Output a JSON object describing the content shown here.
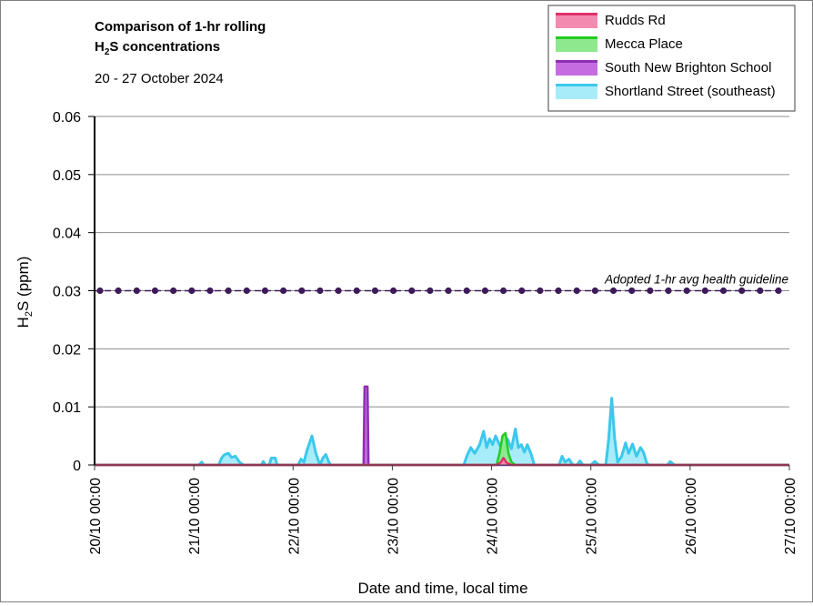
{
  "chart_data": {
    "type": "area",
    "title_line1": "Comparison of 1-hr rolling",
    "title_line2_prefix": "H",
    "title_line2_sub": "2",
    "title_line2_suffix": "S concentrations",
    "subtitle": "20 - 27 October 2024",
    "xlabel": "Date and time, local time",
    "ylabel_prefix": "H",
    "ylabel_sub": "2",
    "ylabel_suffix": "S (ppm)",
    "ylim": [
      0,
      0.06
    ],
    "y_ticks": [
      "0",
      "0.01",
      "0.02",
      "0.03",
      "0.04",
      "0.05",
      "0.06"
    ],
    "x_tick_labels": [
      "20/10 00:00",
      "21/10 00:00",
      "22/10 00:00",
      "23/10 00:00",
      "24/10 00:00",
      "25/10 00:00",
      "26/10 00:00",
      "27/10 00:00"
    ],
    "x_unit": "day since 20/10 00:00",
    "grid": true,
    "legend_position": "top-right",
    "series": [
      {
        "name": "Rudds Rd",
        "line_color": "#e0306e",
        "fill_color": "#f48ab0",
        "points": [
          [
            0,
            0
          ],
          [
            4.05,
            0
          ],
          [
            4.09,
            0.0004
          ],
          [
            4.12,
            0.0012
          ],
          [
            4.15,
            0.0004
          ],
          [
            4.2,
            0
          ],
          [
            7,
            0
          ]
        ]
      },
      {
        "name": "Mecca Place",
        "line_color": "#22cc22",
        "fill_color": "#8ee88e",
        "points": [
          [
            0,
            0
          ],
          [
            4.05,
            0
          ],
          [
            4.08,
            0.002
          ],
          [
            4.11,
            0.005
          ],
          [
            4.14,
            0.0055
          ],
          [
            4.17,
            0.002
          ],
          [
            4.2,
            0.0005
          ],
          [
            4.24,
            0
          ],
          [
            7,
            0
          ]
        ]
      },
      {
        "name": "South New Brighton School",
        "line_color": "#8e2fb5",
        "fill_color": "#c56de0",
        "points": [
          [
            0,
            0
          ],
          [
            2.71,
            0
          ],
          [
            2.72,
            0.0135
          ],
          [
            2.75,
            0.0135
          ],
          [
            2.76,
            0
          ],
          [
            7,
            0
          ]
        ]
      },
      {
        "name": "Shortland Street (southeast)",
        "line_color": "#3cc8ec",
        "fill_color": "#a8ecfa",
        "points": [
          [
            0,
            0
          ],
          [
            1.05,
            0
          ],
          [
            1.08,
            0.0005
          ],
          [
            1.1,
            0
          ],
          [
            1.25,
            0
          ],
          [
            1.28,
            0.0012
          ],
          [
            1.31,
            0.0018
          ],
          [
            1.35,
            0.002
          ],
          [
            1.38,
            0.0013
          ],
          [
            1.42,
            0.0015
          ],
          [
            1.46,
            0.0005
          ],
          [
            1.5,
            0
          ],
          [
            1.68,
            0
          ],
          [
            1.7,
            0.0006
          ],
          [
            1.72,
            0
          ],
          [
            1.76,
            0
          ],
          [
            1.78,
            0.0012
          ],
          [
            1.82,
            0.0012
          ],
          [
            1.84,
            0
          ],
          [
            2.05,
            0
          ],
          [
            2.08,
            0.001
          ],
          [
            2.11,
            0.0005
          ],
          [
            2.14,
            0.0025
          ],
          [
            2.19,
            0.005
          ],
          [
            2.23,
            0.002
          ],
          [
            2.27,
            0
          ],
          [
            2.3,
            0.0012
          ],
          [
            2.33,
            0.0018
          ],
          [
            2.36,
            0.0005
          ],
          [
            2.38,
            0
          ],
          [
            3.72,
            0
          ],
          [
            3.75,
            0.0015
          ],
          [
            3.79,
            0.003
          ],
          [
            3.83,
            0.002
          ],
          [
            3.88,
            0.0035
          ],
          [
            3.92,
            0.0058
          ],
          [
            3.95,
            0.003
          ],
          [
            3.98,
            0.0045
          ],
          [
            4.01,
            0.0035
          ],
          [
            4.04,
            0.005
          ],
          [
            4.08,
            0.0035
          ],
          [
            4.12,
            0.002
          ],
          [
            4.16,
            0.0045
          ],
          [
            4.2,
            0.0028
          ],
          [
            4.24,
            0.0062
          ],
          [
            4.27,
            0.003
          ],
          [
            4.3,
            0.0035
          ],
          [
            4.33,
            0.0022
          ],
          [
            4.36,
            0.0035
          ],
          [
            4.4,
            0.0018
          ],
          [
            4.43,
            0
          ],
          [
            4.68,
            0
          ],
          [
            4.71,
            0.0015
          ],
          [
            4.74,
            0.0005
          ],
          [
            4.78,
            0.001
          ],
          [
            4.82,
            0
          ],
          [
            4.86,
            0
          ],
          [
            4.89,
            0.0007
          ],
          [
            4.92,
            0
          ],
          [
            5.0,
            0
          ],
          [
            5.04,
            0.0006
          ],
          [
            5.08,
            0
          ],
          [
            5.15,
            0
          ],
          [
            5.18,
            0.0045
          ],
          [
            5.21,
            0.0115
          ],
          [
            5.24,
            0.0045
          ],
          [
            5.27,
            0.0005
          ],
          [
            5.31,
            0.0015
          ],
          [
            5.35,
            0.0038
          ],
          [
            5.38,
            0.002
          ],
          [
            5.42,
            0.0036
          ],
          [
            5.46,
            0.0015
          ],
          [
            5.5,
            0.003
          ],
          [
            5.53,
            0.0022
          ],
          [
            5.56,
            0.0005
          ],
          [
            5.58,
            0
          ],
          [
            5.77,
            0
          ],
          [
            5.8,
            0.0006
          ],
          [
            5.84,
            0
          ],
          [
            7,
            0
          ]
        ]
      }
    ],
    "guideline": {
      "label": "Adopted 1-hr avg health guideline",
      "value": 0.03,
      "color": "#3d1a5a",
      "marker_count": 38
    }
  }
}
